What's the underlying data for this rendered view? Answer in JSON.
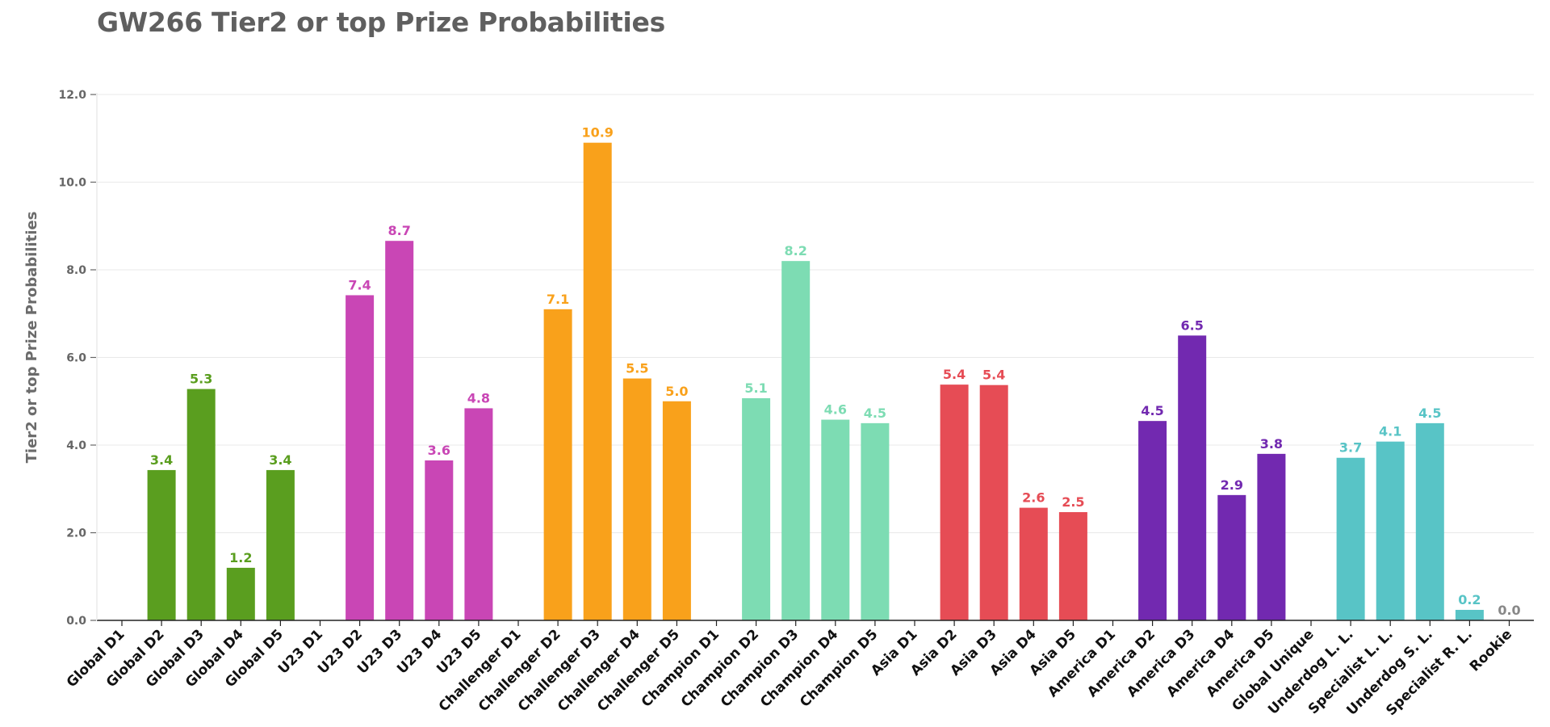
{
  "chart_data": {
    "type": "bar",
    "title": "GW266 Tier2 or top Prize Probabilities",
    "xlabel": "",
    "ylabel": "Tier2 or top Prize Probabilities",
    "ylim": [
      0,
      12
    ],
    "yticks": [
      0,
      2,
      4,
      6,
      8,
      10,
      12
    ],
    "ytick_labels": [
      "0.0",
      "2.0",
      "4.0",
      "6.0",
      "8.0",
      "10.0",
      "12.0"
    ],
    "grid": true,
    "categories": [
      "Global D1",
      "Global D2",
      "Global D3",
      "Global D4",
      "Global D5",
      "U23 D1",
      "U23 D2",
      "U23 D3",
      "U23 D4",
      "U23 D5",
      "Challenger D1",
      "Challenger D2",
      "Challenger D3",
      "Challenger D4",
      "Challenger D5",
      "Champion D1",
      "Champion D2",
      "Champion D3",
      "Champion D4",
      "Champion D5",
      "Asia D1",
      "Asia D2",
      "Asia D3",
      "Asia D4",
      "Asia D5",
      "America D1",
      "America D2",
      "America D3",
      "America D4",
      "America D5",
      "Global Unique",
      "Underdog L. L.",
      "Specialist L. L.",
      "Underdog S. L.",
      "Specialist R. L.",
      "Rookie"
    ],
    "values": [
      null,
      3.43,
      5.28,
      1.2,
      3.43,
      null,
      7.42,
      8.66,
      3.65,
      4.84,
      null,
      7.1,
      10.9,
      5.52,
      5.0,
      null,
      5.07,
      8.2,
      4.58,
      4.5,
      null,
      5.38,
      5.37,
      2.57,
      2.47,
      null,
      4.55,
      6.5,
      2.86,
      3.8,
      null,
      3.71,
      4.08,
      4.5,
      0.24,
      0.0
    ],
    "value_labels": [
      "",
      "3.4",
      "5.3",
      "1.2",
      "3.4",
      "",
      "7.4",
      "8.7",
      "3.6",
      "4.8",
      "",
      "7.1",
      "10.9",
      "5.5",
      "5.0",
      "",
      "5.1",
      "8.2",
      "4.6",
      "4.5",
      "",
      "5.4",
      "5.4",
      "2.6",
      "2.5",
      "",
      "4.5",
      "6.5",
      "2.9",
      "3.8",
      "",
      "3.7",
      "4.1",
      "4.5",
      "0.2",
      "0.0"
    ],
    "colors": [
      "#5a9e1f",
      "#5a9e1f",
      "#5a9e1f",
      "#5a9e1f",
      "#5a9e1f",
      "#c946b5",
      "#c946b5",
      "#c946b5",
      "#c946b5",
      "#c946b5",
      "#f9a11b",
      "#f9a11b",
      "#f9a11b",
      "#f9a11b",
      "#f9a11b",
      "#7ddcb3",
      "#7ddcb3",
      "#7ddcb3",
      "#7ddcb3",
      "#7ddcb3",
      "#e64c55",
      "#e64c55",
      "#e64c55",
      "#e64c55",
      "#e64c55",
      "#7229b0",
      "#7229b0",
      "#7229b0",
      "#7229b0",
      "#7229b0",
      "#58c4c6",
      "#58c4c6",
      "#58c4c6",
      "#58c4c6",
      "#58c4c6",
      "#888888"
    ]
  }
}
